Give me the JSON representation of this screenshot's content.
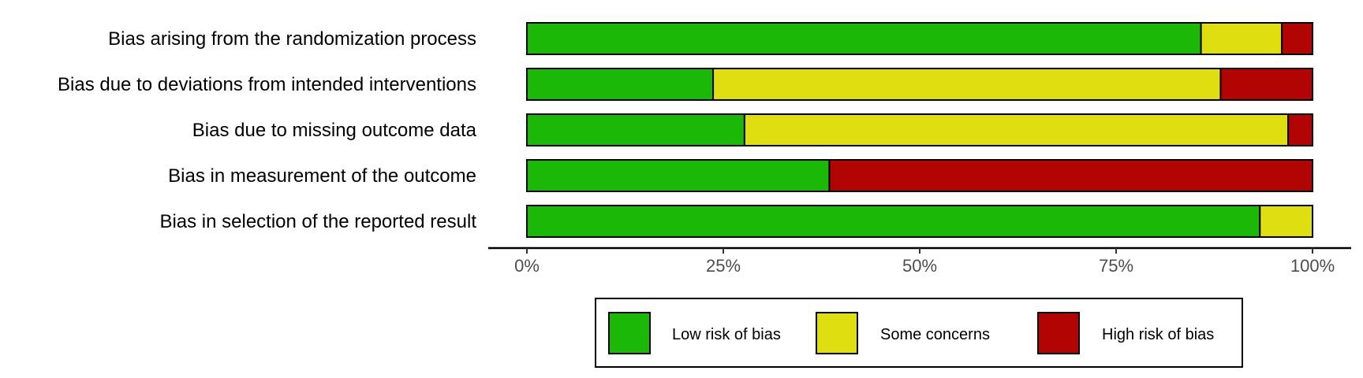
{
  "chart_data": {
    "type": "bar",
    "orientation": "horizontal",
    "stacked": true,
    "categories": [
      "Bias arising from the randomization process",
      "Bias due to deviations from intended interventions",
      "Bias due to missing outcome data",
      "Bias in measurement of the outcome",
      "Bias in selection of the reported result"
    ],
    "series": [
      {
        "name": "Low risk of bias",
        "color": "#1cb808",
        "values": [
          85.8,
          23.7,
          27.7,
          38.5,
          93.3
        ]
      },
      {
        "name": "Some concerns",
        "color": "#dede10",
        "values": [
          10.3,
          64.6,
          69.2,
          0,
          6.7
        ]
      },
      {
        "name": "High risk of bias",
        "color": "#b30404",
        "values": [
          3.9,
          11.7,
          3.1,
          61.5,
          0
        ]
      }
    ],
    "xticks": [
      "0%",
      "25%",
      "50%",
      "75%",
      "100%"
    ],
    "xlim": [
      0,
      100
    ],
    "title": "",
    "xlabel": "",
    "ylabel": "",
    "grid": false,
    "legend_position": "bottom"
  }
}
